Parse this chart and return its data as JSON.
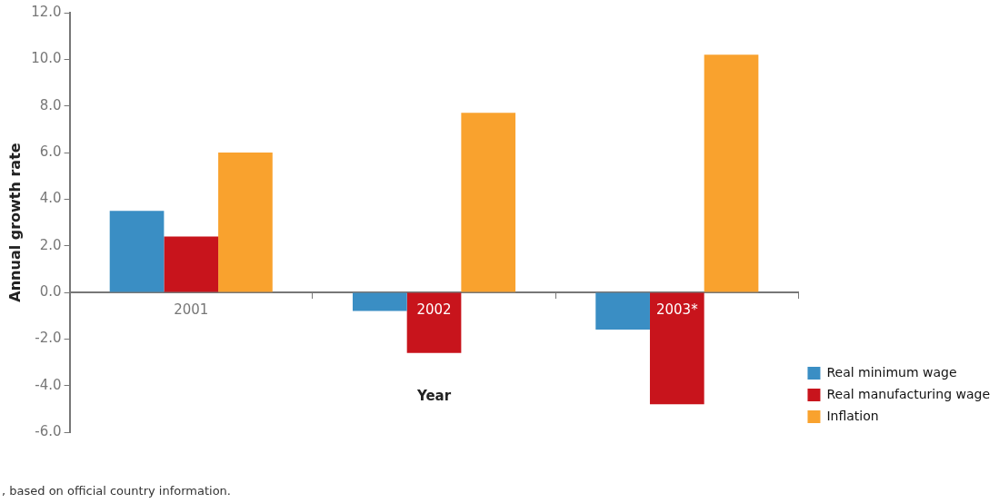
{
  "chart_data": {
    "type": "bar",
    "xlabel": "Year",
    "ylabel": "Annual growth rate",
    "categories": [
      "2001",
      "2002",
      "2003*"
    ],
    "series": [
      {
        "name": "Real minimum wage",
        "color": "#3a8ec4",
        "values": [
          3.5,
          -0.8,
          -1.6
        ]
      },
      {
        "name": "Real manufacturing wage",
        "color": "#c8141c",
        "values": [
          2.4,
          -2.6,
          -4.8
        ]
      },
      {
        "name": "Inflation",
        "color": "#f9a22e",
        "values": [
          6.0,
          7.7,
          10.2
        ]
      }
    ],
    "ylim": [
      -6,
      12
    ],
    "yticks": [
      {
        "value": -6,
        "label": "-6.0"
      },
      {
        "value": -4,
        "label": "-4.0"
      },
      {
        "value": -2,
        "label": "-2.0"
      },
      {
        "value": 0,
        "label": "0.0"
      },
      {
        "value": 2,
        "label": "2.0"
      },
      {
        "value": 4,
        "label": "4.0"
      },
      {
        "value": 6,
        "label": "6.0"
      },
      {
        "value": 8,
        "label": "8.0"
      },
      {
        "value": 10,
        "label": "10.0"
      },
      {
        "value": 12,
        "label": "12.0"
      }
    ],
    "grid": false,
    "legend": "bottom right",
    "annotations": [
      ", based on official country information."
    ]
  }
}
